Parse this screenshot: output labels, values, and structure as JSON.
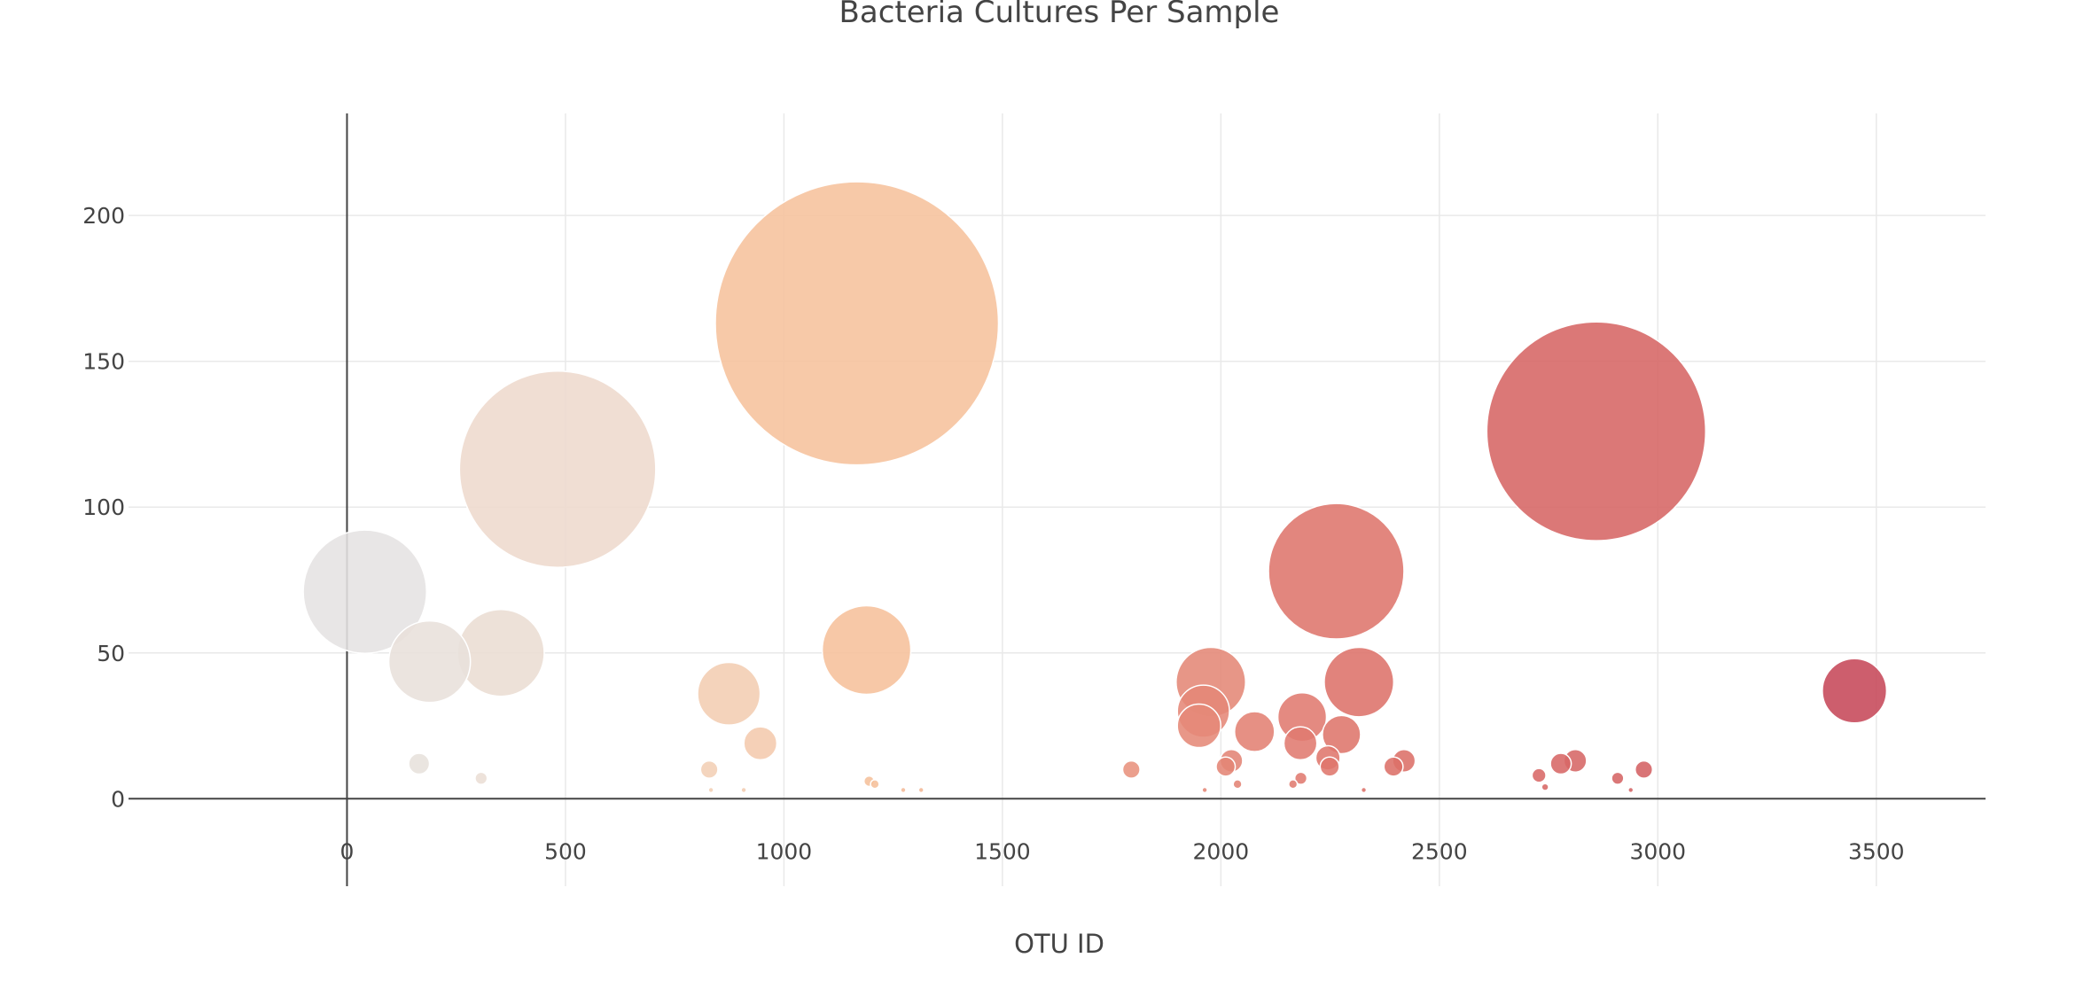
{
  "chart_data": {
    "type": "scatter",
    "subtype": "bubble",
    "title": "Bacteria Cultures Per Sample",
    "xlabel": "OTU ID",
    "ylabel": "",
    "xlim": [
      -500,
      3750
    ],
    "ylim": [
      -30,
      235
    ],
    "x_ticks": [
      0,
      500,
      1000,
      1500,
      2000,
      2500,
      3000,
      3500
    ],
    "y_ticks": [
      0,
      50,
      100,
      150,
      200
    ],
    "grid": true,
    "legend": "none",
    "colorscale": "Earth-like (light gray → peach → coral → deep red), colored by OTU ID",
    "color_stops": [
      "#e4e4e4",
      "#f0d8c8",
      "#f6c29c",
      "#e9957f",
      "#dd7169",
      "#d56464",
      "#c54558"
    ],
    "series": [
      {
        "x": [
          41,
          189,
          352,
          482,
          1167,
          1189,
          874,
          946,
          1977,
          1960,
          1950,
          2264,
          2316,
          2859,
          3450,
          2077,
          2186,
          2182,
          2276,
          2245,
          165,
          307,
          829,
          1795,
          2024,
          2011,
          2419,
          2395,
          2249,
          2811,
          2778,
          2968,
          2728,
          2908,
          1195,
          1208,
          2183,
          2165,
          2038,
          2742,
          833,
          908,
          1273,
          1314,
          2938,
          2327,
          1963
        ],
        "y": [
          71,
          47,
          50,
          113,
          163,
          51,
          36,
          19,
          40,
          30,
          25,
          78,
          40,
          126,
          37,
          23,
          28,
          19,
          22,
          14,
          12,
          7,
          10,
          10,
          13,
          11,
          13,
          11,
          11,
          13,
          12,
          10,
          8,
          7,
          6,
          5,
          7,
          5,
          5,
          4,
          3,
          3,
          3,
          3,
          3,
          3,
          3
        ]
      }
    ]
  }
}
